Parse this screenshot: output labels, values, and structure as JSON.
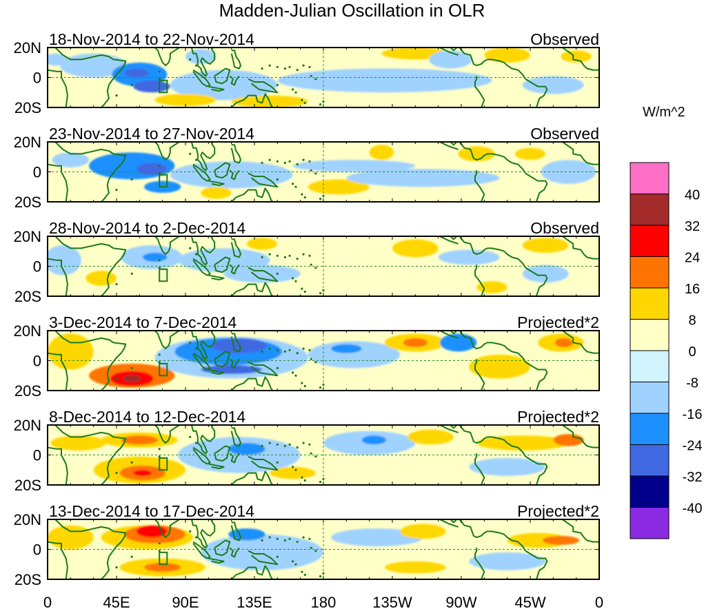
{
  "chart_data": {
    "type": "heatmap",
    "title": "Madden-Julian Oscillation in OLR",
    "unit_label": "W/m^2",
    "x_ticks": [
      "0",
      "45E",
      "90E",
      "135E",
      "180",
      "135W",
      "90W",
      "45W",
      "0"
    ],
    "y_ticks": [
      "20N",
      "0",
      "20S"
    ],
    "xlim": [
      0,
      360
    ],
    "ylim": [
      -20,
      20
    ],
    "colorbar": {
      "levels": [
        "40",
        "32",
        "24",
        "16",
        "8",
        "0",
        "-8",
        "-16",
        "-24",
        "-32",
        "-40"
      ],
      "colors": [
        "#ff6ec7",
        "#a52a2a",
        "#ff0000",
        "#ff7400",
        "#ffd700",
        "#ffffc8",
        "#d2f4ff",
        "#a0d2ff",
        "#1e90ff",
        "#4169e1",
        "#00008b",
        "#8a2be2"
      ]
    },
    "panels": [
      {
        "date_range": "18-Nov-2014 to 22-Nov-2014",
        "label": "Observed",
        "anomalies": [
          {
            "lon": 5,
            "lat": 12,
            "rx": 8,
            "ry": 4,
            "level": -1
          },
          {
            "lon": 30,
            "lat": 8,
            "rx": 22,
            "ry": 8,
            "level": -1
          },
          {
            "lon": 60,
            "lat": 2,
            "rx": 18,
            "ry": 8,
            "level": -2
          },
          {
            "lon": 68,
            "lat": -6,
            "rx": 12,
            "ry": 4,
            "level": -3
          },
          {
            "lon": 58,
            "lat": 3,
            "rx": 8,
            "ry": 3,
            "level": -3
          },
          {
            "lon": 115,
            "lat": -5,
            "rx": 35,
            "ry": 10,
            "level": -1
          },
          {
            "lon": 100,
            "lat": 14,
            "rx": 10,
            "ry": 5,
            "level": -1
          },
          {
            "lon": 90,
            "lat": -15,
            "rx": 20,
            "ry": 4,
            "level": 1
          },
          {
            "lon": 145,
            "lat": -16,
            "rx": 25,
            "ry": 4,
            "level": 1
          },
          {
            "lon": 220,
            "lat": -2,
            "rx": 70,
            "ry": 8,
            "level": -1
          },
          {
            "lon": 240,
            "lat": 16,
            "rx": 22,
            "ry": 4,
            "level": 1
          },
          {
            "lon": 263,
            "lat": 12,
            "rx": 14,
            "ry": 6,
            "level": -1
          },
          {
            "lon": 300,
            "lat": 15,
            "rx": 15,
            "ry": 5,
            "level": 1
          },
          {
            "lon": 330,
            "lat": -5,
            "rx": 20,
            "ry": 6,
            "level": -1
          },
          {
            "lon": 345,
            "lat": 14,
            "rx": 10,
            "ry": 4,
            "level": 1
          }
        ]
      },
      {
        "date_range": "23-Nov-2014 to 27-Nov-2014",
        "label": "Observed",
        "anomalies": [
          {
            "lon": 15,
            "lat": 8,
            "rx": 12,
            "ry": 5,
            "level": -1
          },
          {
            "lon": 55,
            "lat": 4,
            "rx": 28,
            "ry": 9,
            "level": -2
          },
          {
            "lon": 68,
            "lat": 2,
            "rx": 10,
            "ry": 4,
            "level": -3
          },
          {
            "lon": 75,
            "lat": -10,
            "rx": 12,
            "ry": 4,
            "level": -2
          },
          {
            "lon": 120,
            "lat": -2,
            "rx": 40,
            "ry": 9,
            "level": -1
          },
          {
            "lon": 110,
            "lat": -14,
            "rx": 10,
            "ry": 4,
            "level": 1
          },
          {
            "lon": 190,
            "lat": -10,
            "rx": 20,
            "ry": 5,
            "level": 1
          },
          {
            "lon": 200,
            "lat": 4,
            "rx": 40,
            "ry": 4,
            "level": -1
          },
          {
            "lon": 218,
            "lat": 13,
            "rx": 8,
            "ry": 5,
            "level": 1
          },
          {
            "lon": 280,
            "lat": 12,
            "rx": 12,
            "ry": 5,
            "level": 1
          },
          {
            "lon": 315,
            "lat": 12,
            "rx": 10,
            "ry": 4,
            "level": 1
          },
          {
            "lon": 245,
            "lat": -4,
            "rx": 50,
            "ry": 6,
            "level": -1
          },
          {
            "lon": 340,
            "lat": 0,
            "rx": 18,
            "ry": 8,
            "level": -1
          }
        ]
      },
      {
        "date_range": "28-Nov-2014 to 2-Dec-2014",
        "label": "Observed",
        "anomalies": [
          {
            "lon": 10,
            "lat": 4,
            "rx": 12,
            "ry": 10,
            "level": -1
          },
          {
            "lon": 35,
            "lat": -8,
            "rx": 10,
            "ry": 5,
            "level": 1
          },
          {
            "lon": 68,
            "lat": 6,
            "rx": 20,
            "ry": 8,
            "level": -1
          },
          {
            "lon": 70,
            "lat": 6,
            "rx": 8,
            "ry": 3,
            "level": -2
          },
          {
            "lon": 115,
            "lat": 4,
            "rx": 30,
            "ry": 8,
            "level": -1
          },
          {
            "lon": 140,
            "lat": -5,
            "rx": 25,
            "ry": 6,
            "level": -1
          },
          {
            "lon": 140,
            "lat": 15,
            "rx": 10,
            "ry": 4,
            "level": 1
          },
          {
            "lon": 240,
            "lat": 12,
            "rx": 15,
            "ry": 6,
            "level": 1
          },
          {
            "lon": 275,
            "lat": 6,
            "rx": 20,
            "ry": 5,
            "level": -1
          },
          {
            "lon": 325,
            "lat": 14,
            "rx": 15,
            "ry": 5,
            "level": 1
          },
          {
            "lon": 325,
            "lat": -5,
            "rx": 15,
            "ry": 6,
            "level": -1
          },
          {
            "lon": 290,
            "lat": -14,
            "rx": 10,
            "ry": 4,
            "level": 1
          }
        ]
      },
      {
        "date_range": "3-Dec-2014 to 7-Dec-2014",
        "label": "Projected*2",
        "anomalies": [
          {
            "lon": 15,
            "lat": 6,
            "rx": 15,
            "ry": 12,
            "level": 1
          },
          {
            "lon": 55,
            "lat": -10,
            "rx": 28,
            "ry": 8,
            "level": 2
          },
          {
            "lon": 55,
            "lat": -12,
            "rx": 14,
            "ry": 5,
            "level": 3
          },
          {
            "lon": 55,
            "lat": -12,
            "rx": 6,
            "ry": 2.5,
            "level": 4
          },
          {
            "lon": 120,
            "lat": 2,
            "rx": 50,
            "ry": 14,
            "level": -1
          },
          {
            "lon": 118,
            "lat": 6,
            "rx": 35,
            "ry": 9,
            "level": -2
          },
          {
            "lon": 125,
            "lat": 10,
            "rx": 18,
            "ry": 5,
            "level": -3
          },
          {
            "lon": 120,
            "lat": -6,
            "rx": 20,
            "ry": 3,
            "level": -3
          },
          {
            "lon": 200,
            "lat": 4,
            "rx": 30,
            "ry": 9,
            "level": -1
          },
          {
            "lon": 195,
            "lat": 8,
            "rx": 10,
            "ry": 3,
            "level": -2
          },
          {
            "lon": 240,
            "lat": 12,
            "rx": 20,
            "ry": 6,
            "level": 1
          },
          {
            "lon": 240,
            "lat": 12,
            "rx": 8,
            "ry": 3,
            "level": 2
          },
          {
            "lon": 268,
            "lat": 12,
            "rx": 12,
            "ry": 6,
            "level": -2
          },
          {
            "lon": 295,
            "lat": -4,
            "rx": 20,
            "ry": 8,
            "level": 1
          },
          {
            "lon": 335,
            "lat": 12,
            "rx": 15,
            "ry": 6,
            "level": 1
          },
          {
            "lon": 337,
            "lat": 12,
            "rx": 6,
            "ry": 3,
            "level": 2
          }
        ]
      },
      {
        "date_range": "8-Dec-2014 to 12-Dec-2014",
        "label": "Projected*2",
        "anomalies": [
          {
            "lon": 20,
            "lat": 8,
            "rx": 18,
            "ry": 5,
            "level": 1
          },
          {
            "lon": 60,
            "lat": 10,
            "rx": 25,
            "ry": 5,
            "level": 1
          },
          {
            "lon": 60,
            "lat": 10,
            "rx": 12,
            "ry": 3,
            "level": 2
          },
          {
            "lon": 60,
            "lat": -10,
            "rx": 30,
            "ry": 9,
            "level": 1
          },
          {
            "lon": 62,
            "lat": -12,
            "rx": 15,
            "ry": 5,
            "level": 2
          },
          {
            "lon": 62,
            "lat": -12,
            "rx": 6,
            "ry": 2,
            "level": 3
          },
          {
            "lon": 125,
            "lat": 0,
            "rx": 40,
            "ry": 12,
            "level": -1
          },
          {
            "lon": 130,
            "lat": 4,
            "rx": 12,
            "ry": 4,
            "level": -2
          },
          {
            "lon": 160,
            "lat": -12,
            "rx": 15,
            "ry": 4,
            "level": 1
          },
          {
            "lon": 210,
            "lat": 8,
            "rx": 30,
            "ry": 8,
            "level": -1
          },
          {
            "lon": 213,
            "lat": 10,
            "rx": 8,
            "ry": 3,
            "level": -2
          },
          {
            "lon": 250,
            "lat": 12,
            "rx": 15,
            "ry": 5,
            "level": 1
          },
          {
            "lon": 310,
            "lat": 8,
            "rx": 30,
            "ry": 5,
            "level": 1
          },
          {
            "lon": 340,
            "lat": 10,
            "rx": 10,
            "ry": 4,
            "level": 2
          },
          {
            "lon": 300,
            "lat": -8,
            "rx": 25,
            "ry": 6,
            "level": -1
          }
        ]
      },
      {
        "date_range": "13-Dec-2014 to 17-Dec-2014",
        "label": "Projected*2",
        "anomalies": [
          {
            "lon": 15,
            "lat": 8,
            "rx": 15,
            "ry": 8,
            "level": 1
          },
          {
            "lon": 65,
            "lat": 8,
            "rx": 30,
            "ry": 8,
            "level": 1
          },
          {
            "lon": 70,
            "lat": 10,
            "rx": 20,
            "ry": 6,
            "level": 2
          },
          {
            "lon": 68,
            "lat": 12,
            "rx": 10,
            "ry": 4,
            "level": 3
          },
          {
            "lon": 75,
            "lat": -12,
            "rx": 28,
            "ry": 6,
            "level": 1
          },
          {
            "lon": 75,
            "lat": -12,
            "rx": 12,
            "ry": 3,
            "level": 2
          },
          {
            "lon": 140,
            "lat": -2,
            "rx": 40,
            "ry": 12,
            "level": -1
          },
          {
            "lon": 130,
            "lat": 10,
            "rx": 12,
            "ry": 4,
            "level": -2
          },
          {
            "lon": 215,
            "lat": 8,
            "rx": 30,
            "ry": 6,
            "level": -1
          },
          {
            "lon": 245,
            "lat": 12,
            "rx": 15,
            "ry": 5,
            "level": 1
          },
          {
            "lon": 320,
            "lat": 6,
            "rx": 20,
            "ry": 5,
            "level": 1
          },
          {
            "lon": 335,
            "lat": 6,
            "rx": 12,
            "ry": 3,
            "level": 2
          },
          {
            "lon": 300,
            "lat": -8,
            "rx": 25,
            "ry": 6,
            "level": -1
          },
          {
            "lon": 240,
            "lat": -12,
            "rx": 20,
            "ry": 4,
            "level": 1
          }
        ]
      }
    ]
  }
}
